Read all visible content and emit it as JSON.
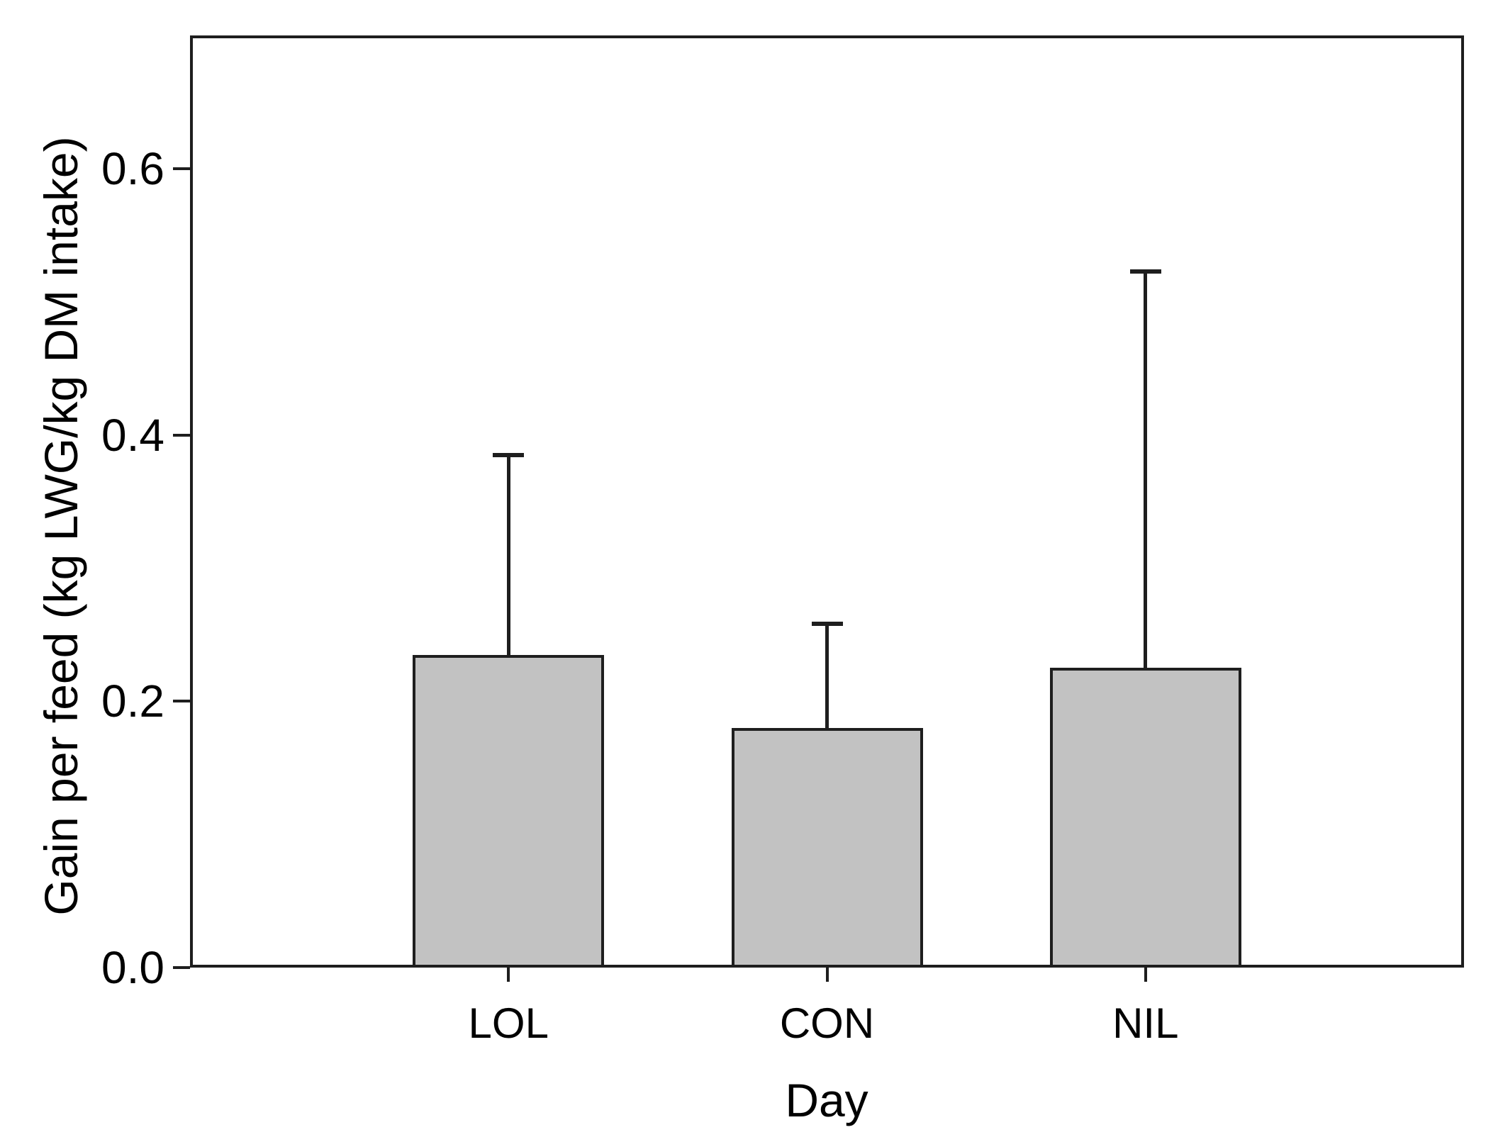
{
  "chart_data": {
    "type": "bar",
    "title": "",
    "xlabel": "Day",
    "ylabel": "Gain per feed (kg LWG/kg DM intake)",
    "categories": [
      "LOL",
      "CON",
      "NIL"
    ],
    "values": [
      0.235,
      0.18,
      0.225
    ],
    "error_plus": [
      0.15,
      0.078,
      0.298
    ],
    "error_bar_direction": "upper-only",
    "ylim": [
      0,
      0.7
    ],
    "yticks": [
      {
        "value": 0.0,
        "label": "0.0"
      },
      {
        "value": 0.2,
        "label": "0.2"
      },
      {
        "value": 0.4,
        "label": "0.4"
      },
      {
        "value": 0.6,
        "label": "0.6"
      }
    ],
    "grid": false,
    "legend": null,
    "bar_fill_color": "#c2c2c2",
    "line_color": "#1e1e1e",
    "background_color": "#ffffff"
  }
}
